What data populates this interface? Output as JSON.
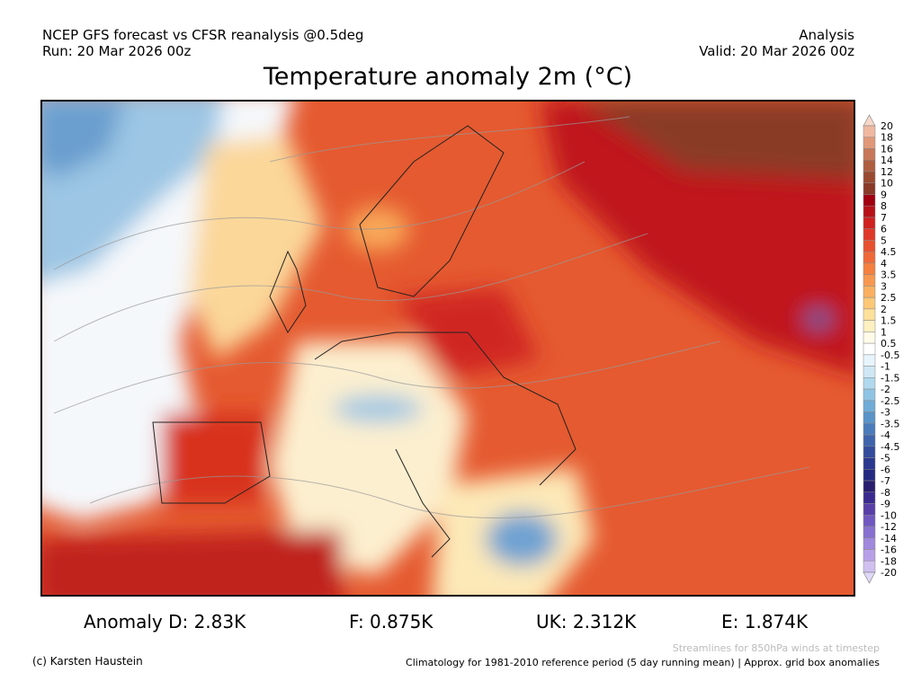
{
  "header": {
    "left_line1": "NCEP GFS forecast vs CFSR reanalysis @0.5deg",
    "left_line2": "Run: 20 Mar 2026 00z",
    "right_line1": "Analysis",
    "right_line2": "Valid: 20 Mar 2026 00z"
  },
  "title": "Temperature anomaly 2m (°C)",
  "colorbar": {
    "labels": [
      "20",
      "18",
      "16",
      "14",
      "12",
      "10",
      "9",
      "8",
      "7",
      "6",
      "5",
      "4.5",
      "4",
      "3.5",
      "3",
      "2.5",
      "2",
      "1.5",
      "1",
      "0.5",
      "-0.5",
      "-1",
      "-1.5",
      "-2",
      "-2.5",
      "-3",
      "-3.5",
      "-4",
      "-4.5",
      "-5",
      "-6",
      "-7",
      "-8",
      "-9",
      "-10",
      "-12",
      "-14",
      "-16",
      "-18",
      "-20"
    ]
  },
  "stats": [
    "Anomaly D: 2.83K",
    "F: 0.875K",
    "UK: 2.312K",
    "E: 1.874K"
  ],
  "footer": {
    "copyright": "(c) Karsten Haustein",
    "streamlines_note": "Streamlines for 850hPa winds at timestep",
    "climatology_note": "Climatology for 1981-2010 reference period (5 day running mean) | Approx. grid box anomalies"
  }
}
